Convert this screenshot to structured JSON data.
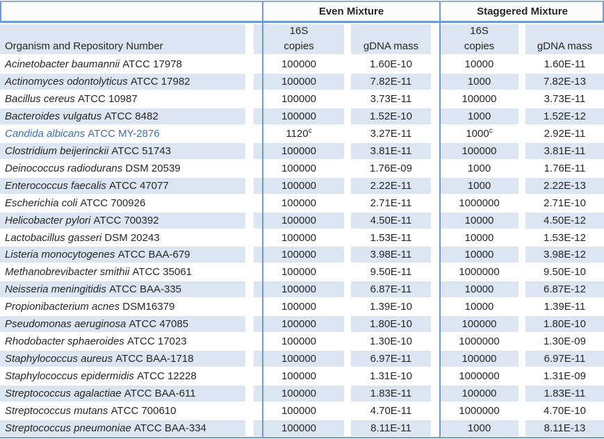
{
  "table": {
    "group_headers": {
      "even": "Even Mixture",
      "staggered": "Staggered Mixture"
    },
    "org_header": "Organism and Repository Number",
    "sub_headers": {
      "copies_line1": "16S",
      "copies_line2": "copies",
      "gdna": "gDNA mass"
    },
    "colors": {
      "stripe": "#dbe6f2",
      "border_blue": "#6c9bd2",
      "top_rule": "#8cabd6",
      "highlight_text": "#3f6fae",
      "body_text": "#262626"
    },
    "rows": [
      {
        "species": "Acinetobacter baumannii",
        "repo": "ATCC 17978",
        "even_copies": "100000",
        "even_gdna": "1.60E-10",
        "stag_copies": "10000",
        "stag_gdna": "1.60E-11"
      },
      {
        "species": "Actinomyces odontolyticus",
        "repo": "ATCC 17982",
        "even_copies": "100000",
        "even_gdna": "7.82E-11",
        "stag_copies": "1000",
        "stag_gdna": "7.82E-13"
      },
      {
        "species": "Bacillus cereus",
        "repo": "ATCC 10987",
        "even_copies": "100000",
        "even_gdna": "3.73E-11",
        "stag_copies": "100000",
        "stag_gdna": "3.73E-11"
      },
      {
        "species": "Bacteroides vulgatus",
        "repo": "ATCC 8482",
        "even_copies": "100000",
        "even_gdna": "1.52E-10",
        "stag_copies": "1000",
        "stag_gdna": "1.52E-12"
      },
      {
        "species": "Candida albicans",
        "repo": "ATCC MY-2876",
        "even_copies": "1120",
        "even_copies_sup": "c",
        "even_gdna": "3.27E-11",
        "stag_copies": "1000",
        "stag_copies_sup": "c",
        "stag_gdna": "2.92E-11",
        "highlight": true
      },
      {
        "species": "Clostridium beijerinckii",
        "repo": "ATCC 51743",
        "even_copies": "100000",
        "even_gdna": "3.81E-11",
        "stag_copies": "100000",
        "stag_gdna": "3.81E-11"
      },
      {
        "species": "Deinococcus radiodurans",
        "repo": "DSM 20539",
        "even_copies": "100000",
        "even_gdna": "1.76E-09",
        "stag_copies": "1000",
        "stag_gdna": "1.76E-11"
      },
      {
        "species": "Enterococcus faecalis",
        "repo": "ATCC 47077",
        "even_copies": "100000",
        "even_gdna": "2.22E-11",
        "stag_copies": "1000",
        "stag_gdna": "2.22E-13"
      },
      {
        "species": "Escherichia coli",
        "repo": "ATCC 700926",
        "even_copies": "100000",
        "even_gdna": "2.71E-11",
        "stag_copies": "1000000",
        "stag_gdna": "2.71E-10"
      },
      {
        "species": "Helicobacter pylori",
        "repo": "ATCC 700392",
        "even_copies": "100000",
        "even_gdna": "4.50E-11",
        "stag_copies": "10000",
        "stag_gdna": "4.50E-12"
      },
      {
        "species": "Lactobacillus gasseri",
        "repo": "DSM 20243",
        "even_copies": "100000",
        "even_gdna": "1.53E-11",
        "stag_copies": "10000",
        "stag_gdna": "1.53E-12"
      },
      {
        "species": "Listeria monocytogenes",
        "repo": "ATCC BAA-679",
        "even_copies": "100000",
        "even_gdna": "3.98E-11",
        "stag_copies": "10000",
        "stag_gdna": "3.98E-12"
      },
      {
        "species": "Methanobrevibacter smithii",
        "repo": "ATCC 35061",
        "even_copies": "100000",
        "even_gdna": "9.50E-11",
        "stag_copies": "1000000",
        "stag_gdna": "9.50E-10"
      },
      {
        "species": "Neisseria meningitidis",
        "repo": "ATCC BAA-335",
        "even_copies": "100000",
        "even_gdna": "6.87E-11",
        "stag_copies": "10000",
        "stag_gdna": "6.87E-12"
      },
      {
        "species": "Propionibacterium acnes",
        "repo": "DSM16379",
        "even_copies": "100000",
        "even_gdna": "1.39E-10",
        "stag_copies": "10000",
        "stag_gdna": "1.39E-11"
      },
      {
        "species": "Pseudomonas aeruginosa",
        "repo": "ATCC 47085",
        "even_copies": "100000",
        "even_gdna": "1.80E-10",
        "stag_copies": "100000",
        "stag_gdna": "1.80E-10"
      },
      {
        "species": "Rhodobacter sphaeroides",
        "repo": "ATCC 17023",
        "even_copies": "100000",
        "even_gdna": "1.30E-10",
        "stag_copies": "1000000",
        "stag_gdna": "1.30E-09"
      },
      {
        "species": "Staphylococcus aureus",
        "repo": "ATCC BAA-1718",
        "even_copies": "100000",
        "even_gdna": "6.97E-11",
        "stag_copies": "100000",
        "stag_gdna": "6.97E-11"
      },
      {
        "species": "Staphylococcus epidermidis",
        "repo": "ATCC 12228",
        "even_copies": "100000",
        "even_gdna": "1.31E-10",
        "stag_copies": "1000000",
        "stag_gdna": "1.31E-09"
      },
      {
        "species": "Streptococcus agalactiae",
        "repo": "ATCC BAA-611",
        "even_copies": "100000",
        "even_gdna": "1.83E-11",
        "stag_copies": "100000",
        "stag_gdna": "1.83E-11"
      },
      {
        "species": "Streptococcus mutans",
        "repo": "ATCC 700610",
        "even_copies": "100000",
        "even_gdna": "4.70E-11",
        "stag_copies": "1000000",
        "stag_gdna": "4.70E-10"
      },
      {
        "species": "Streptococcus pneumoniae",
        "repo": "ATCC BAA-334",
        "even_copies": "100000",
        "even_gdna": "8.11E-11",
        "stag_copies": "1000",
        "stag_gdna": "8.11E-13"
      }
    ]
  }
}
